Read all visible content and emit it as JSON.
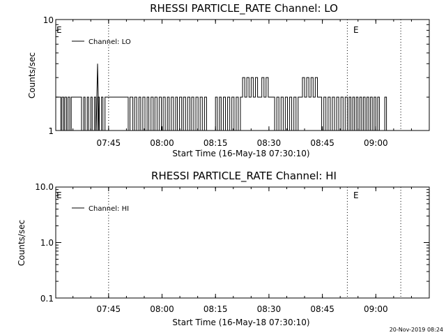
{
  "footer": "20-Nov-2019 08:24",
  "chart_data": [
    {
      "type": "line",
      "title": "RHESSI PARTICLE_RATE Channel: LO",
      "xlabel": "Start Time (16-May-18 07:30:10)",
      "ylabel": "Counts/sec",
      "yscale": "log",
      "ylim": [
        1,
        10
      ],
      "ytick_labels": [
        "1",
        "10"
      ],
      "xlim": [
        "07:30:10",
        "09:15:00"
      ],
      "xtick_labels": [
        "07:45",
        "08:00",
        "08:15",
        "08:30",
        "08:45",
        "09:00"
      ],
      "vlines": [
        "07:45:00",
        "08:52:00",
        "09:07:00"
      ],
      "event_marks": [
        {
          "label": "E",
          "x": "07:30:10"
        },
        {
          "label": "E",
          "x": "08:52:00"
        }
      ],
      "legend": {
        "placement": "top-left",
        "entries": [
          "Channel: LO"
        ]
      },
      "series": [
        {
          "name": "Channel: LO",
          "step": true,
          "x_minutes_after_0730": [
            0.2,
            1.6,
            1.9,
            2.4,
            2.7,
            3.2,
            3.6,
            4.1,
            4.5,
            6.8,
            7.4,
            8.0,
            8.4,
            9.0,
            9.4,
            10.0,
            10.4,
            11.0,
            11.4,
            12.0,
            12.4,
            13.0,
            13.4,
            14.0,
            20.0,
            20.5,
            21.0,
            21.8,
            22.3,
            22.9,
            23.5,
            24.0,
            24.6,
            25.2,
            25.8,
            26.3,
            26.9,
            27.5,
            28.0,
            28.6,
            29.2,
            29.8,
            30.3,
            30.9,
            31.5,
            32.0,
            32.6,
            33.2,
            33.8,
            34.3,
            34.9,
            35.5,
            36.0,
            36.6,
            37.2,
            37.8,
            38.3,
            38.9,
            39.5,
            40.1,
            40.7,
            41.3,
            41.9,
            42.5,
            45.0,
            45.5,
            46.1,
            46.6,
            47.2,
            47.8,
            48.4,
            49.0,
            49.6,
            50.2,
            50.8,
            51.4,
            52.0,
            52.6,
            53.2,
            53.8,
            54.4,
            55.0,
            55.6,
            56.2,
            56.8,
            57.4,
            58.0,
            58.6,
            59.2,
            59.8,
            60.4,
            61.0,
            61.6,
            62.2,
            62.8,
            63.4,
            64.0,
            64.6,
            65.2,
            65.8,
            66.4,
            67.0,
            67.6,
            68.2,
            68.8,
            69.4,
            70.0,
            70.6,
            71.2,
            71.8,
            72.4,
            73.0,
            73.6,
            74.2,
            74.8,
            75.4,
            76.0,
            76.6,
            77.2,
            77.8,
            78.4,
            79.0,
            79.6,
            80.2,
            80.8,
            81.4,
            82.0,
            82.5,
            83.0,
            83.5,
            84.0,
            84.5,
            85.0,
            85.5,
            86.0,
            86.5,
            87.0,
            87.5,
            88.0,
            88.5,
            89.0,
            89.5,
            90.0,
            90.5,
            91.0,
            92.5,
            93.0
          ],
          "values": [
            2,
            1,
            2,
            1,
            2,
            1,
            2,
            1,
            2,
            2,
            1,
            2,
            1,
            2,
            1,
            2,
            1,
            2,
            1,
            2,
            1,
            2,
            1,
            2,
            2,
            1,
            2,
            1,
            2,
            1,
            2,
            1,
            2,
            1,
            2,
            1,
            2,
            1,
            2,
            1,
            2,
            1,
            2,
            1,
            2,
            1,
            2,
            1,
            2,
            1,
            2,
            1,
            2,
            1,
            2,
            1,
            2,
            1,
            2,
            1,
            2,
            1,
            2,
            1,
            2,
            1,
            2,
            1,
            2,
            1,
            2,
            1,
            2,
            1,
            2,
            1,
            2,
            3,
            2,
            3,
            2,
            3,
            2,
            3,
            2,
            2,
            3,
            2,
            3,
            2,
            2,
            2,
            1,
            2,
            1,
            2,
            1,
            2,
            1,
            2,
            1,
            2,
            1,
            2,
            2,
            3,
            2,
            3,
            2,
            3,
            2,
            3,
            2,
            2,
            1,
            2,
            1,
            2,
            1,
            2,
            1,
            2,
            1,
            2,
            1,
            2,
            1,
            2,
            1,
            2,
            1,
            2,
            1,
            2,
            1,
            2,
            1,
            2,
            1,
            2,
            1,
            2,
            1,
            2,
            1,
            2,
            1
          ],
          "peak": {
            "x_minutes_after_0730": 11.9,
            "value": 4
          }
        }
      ]
    },
    {
      "type": "line",
      "title": "RHESSI PARTICLE_RATE Channel: HI",
      "xlabel": "Start Time (16-May-18 07:30:10)",
      "ylabel": "Counts/sec",
      "yscale": "log",
      "ylim": [
        0.1,
        10
      ],
      "ytick_labels": [
        "0.1",
        "1.0",
        "10.0"
      ],
      "xlim": [
        "07:30:10",
        "09:15:00"
      ],
      "xtick_labels": [
        "07:45",
        "08:00",
        "08:15",
        "08:30",
        "08:45",
        "09:00"
      ],
      "vlines": [
        "07:45:00",
        "08:52:00",
        "09:07:00"
      ],
      "event_marks": [
        {
          "label": "E",
          "x": "07:30:10"
        },
        {
          "label": "E",
          "x": "08:52:00"
        }
      ],
      "legend": {
        "placement": "top-left",
        "entries": [
          "Channel: HI"
        ]
      },
      "series": [
        {
          "name": "Channel: HI",
          "x_minutes_after_0730": [],
          "values": []
        }
      ]
    }
  ]
}
